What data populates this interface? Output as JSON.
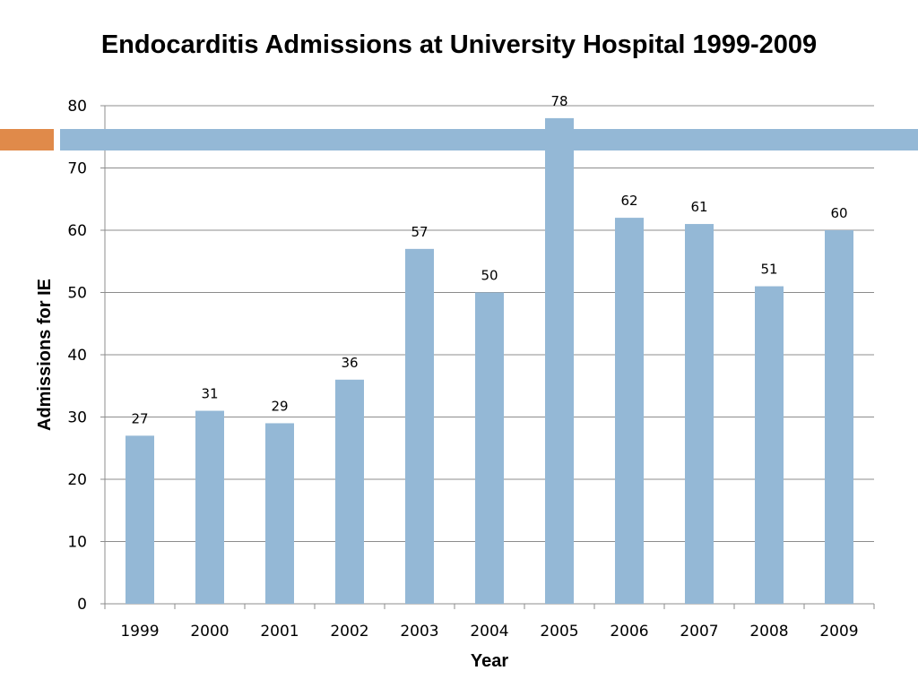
{
  "slide": {
    "title": "Endocarditis Admissions at University Hospital 1999-2009",
    "accent_colors": {
      "orange": "#e08a4a",
      "blue": "#94b8d6"
    }
  },
  "chart_data": {
    "type": "bar",
    "categories": [
      "1999",
      "2000",
      "2001",
      "2002",
      "2003",
      "2004",
      "2005",
      "2006",
      "2007",
      "2008",
      "2009"
    ],
    "values": [
      27,
      31,
      29,
      36,
      57,
      50,
      78,
      62,
      61,
      51,
      60
    ],
    "data_labels": [
      "27",
      "31",
      "29",
      "36",
      "57",
      "50",
      "78",
      "62",
      "61",
      "51",
      "60"
    ],
    "xlabel": "Year",
    "ylabel": "Admissions for IE",
    "ylim": [
      0,
      80
    ],
    "yticks": [
      0,
      10,
      20,
      30,
      40,
      50,
      60,
      70,
      80
    ],
    "ytick_labels": [
      "0",
      "10",
      "20",
      "30",
      "40",
      "50",
      "60",
      "70",
      "80"
    ],
    "grid": true,
    "legend": "none",
    "bar_color": "#94b8d6",
    "gridline_color": "#8c8c8c"
  }
}
